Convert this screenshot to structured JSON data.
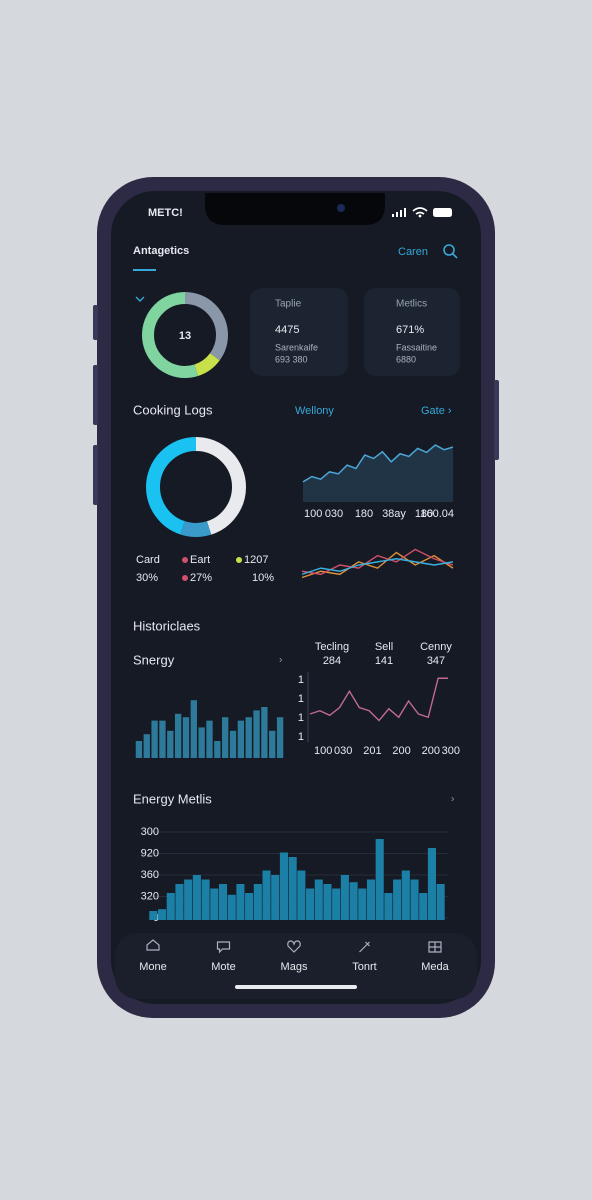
{
  "status_bar": {
    "carrier": "METC!"
  },
  "header": {
    "title": "Antagetics",
    "action": "Caren"
  },
  "summary": {
    "ring_label": "13",
    "ring_segments": [
      {
        "value": 35,
        "color": "#8a97a8"
      },
      {
        "value": 10,
        "color": "#c8e04a"
      },
      {
        "value": 55,
        "color": "#7fd4a0"
      }
    ],
    "cards": [
      {
        "title": "Taplie",
        "value": "4475",
        "subtitle": "Sarenkaife",
        "detail": "693 380"
      },
      {
        "title": "Metlics",
        "value": "671%",
        "subtitle": "Fassaitine",
        "detail": "6880"
      }
    ]
  },
  "cooking_logs": {
    "title": "Cooking Logs",
    "donut": [
      {
        "value": 45,
        "color": "#e8eaee"
      },
      {
        "value": 10,
        "color": "#3a9ac9"
      },
      {
        "value": 45,
        "color": "#19c2f0"
      }
    ],
    "legend": [
      {
        "label": "Card",
        "value": "30%",
        "color": "#38a8d8"
      },
      {
        "label": "Eart",
        "value": "27%",
        "color": "#d0506a"
      },
      {
        "label": "1207",
        "value": "10%",
        "color": "#c8e04a"
      }
    ]
  },
  "wellony": {
    "title": "Wellony",
    "link": "Gate ›",
    "area": {
      "values": [
        30,
        38,
        34,
        45,
        42,
        55,
        50,
        70,
        65,
        75,
        60,
        72,
        68,
        80,
        74,
        85,
        78,
        82
      ],
      "ylim": [
        0,
        100
      ],
      "color": "#4aa8d8"
    },
    "x_labels": [
      "100",
      "030",
      "180",
      "38ay",
      "180",
      "160.04"
    ],
    "lines": {
      "ylim": [
        0,
        80
      ],
      "series": [
        {
          "color": "#e0923a",
          "values": [
            20,
            30,
            25,
            45,
            35,
            60,
            40,
            55,
            35
          ]
        },
        {
          "color": "#d0506a",
          "values": [
            30,
            25,
            40,
            35,
            55,
            45,
            65,
            50,
            40
          ]
        },
        {
          "color": "#3ab0e0",
          "values": [
            25,
            35,
            30,
            40,
            45,
            50,
            45,
            40,
            45
          ]
        }
      ]
    }
  },
  "historicles": {
    "title": "Historiclaes",
    "bars_title": "Snergy",
    "bars": {
      "values": [
        25,
        35,
        55,
        55,
        40,
        65,
        60,
        85,
        45,
        55,
        25,
        60,
        40,
        55,
        60,
        70,
        75,
        40,
        60
      ],
      "ylim": [
        0,
        100
      ],
      "color": "#2d7a9a"
    },
    "stats": [
      {
        "label": "Tecling",
        "value": "284"
      },
      {
        "label": "Sell",
        "value": "141"
      },
      {
        "label": "Cenny",
        "value": "347"
      }
    ],
    "line": {
      "values": [
        40,
        45,
        38,
        50,
        75,
        50,
        45,
        30,
        48,
        35,
        60,
        40,
        35,
        95,
        95
      ],
      "ylim": [
        0,
        100
      ],
      "color": "#c06a90"
    },
    "y_labels": [
      "1",
      "1",
      "1",
      "1"
    ],
    "x_labels": [
      "100",
      "030",
      "201",
      "200",
      "200",
      "300"
    ]
  },
  "energy": {
    "title": "Energy Metlis",
    "y_labels": [
      "300",
      "920",
      "360",
      "320",
      "0"
    ],
    "bars": {
      "values": [
        10,
        12,
        30,
        40,
        45,
        50,
        45,
        35,
        40,
        28,
        40,
        30,
        40,
        55,
        50,
        75,
        70,
        55,
        35,
        45,
        40,
        35,
        50,
        42,
        35,
        45,
        90,
        30,
        45,
        55,
        45,
        30,
        80,
        40
      ],
      "ylim": [
        0,
        100
      ],
      "color": "#1c7fa5"
    }
  },
  "nav": [
    "Mone",
    "Mote",
    "Mags",
    "Tonrt",
    "Meda"
  ]
}
